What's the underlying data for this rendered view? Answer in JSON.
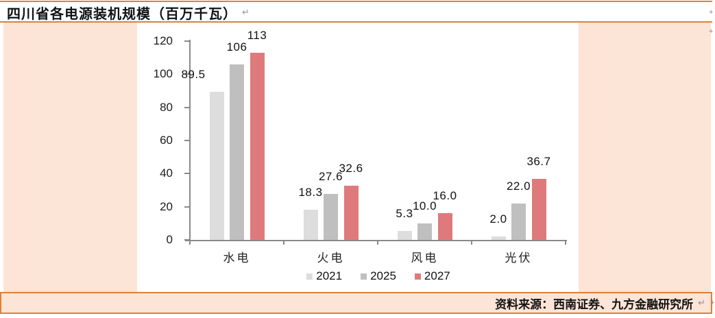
{
  "header": {
    "title": "四川省各电源装机规模（百万千瓦）",
    "paragraph_mark": "↵"
  },
  "footer": {
    "source": "资料来源：西南证券、九方金融研究所",
    "paragraph_mark": "↵",
    "anchor_mark": "+"
  },
  "colors": {
    "accent_orange": "#E08033",
    "band_fill": "#FCE4D6",
    "axis_gray": "#898989",
    "series_2021": "#DDDDDD",
    "series_2025": "#BFBFBF",
    "series_2027": "#DF7A7C"
  },
  "chart_data": {
    "type": "bar",
    "title": "四川省各电源装机规模（百万千瓦）",
    "categories": [
      "水电",
      "火电",
      "风电",
      "光伏"
    ],
    "series": [
      {
        "name": "2021",
        "values": [
          89.5,
          18.3,
          5.3,
          2.0
        ],
        "labels": [
          "89.5",
          "18.3",
          "5.3",
          "2.0"
        ],
        "color": "#DDDDDD"
      },
      {
        "name": "2025",
        "values": [
          106,
          27.6,
          10.0,
          22.0
        ],
        "labels": [
          "106",
          "27.6",
          "10.0",
          "22.0"
        ],
        "color": "#BFBFBF"
      },
      {
        "name": "2027",
        "values": [
          113,
          32.6,
          16.0,
          36.7
        ],
        "labels": [
          "113",
          "32.6",
          "16.0",
          "36.7"
        ],
        "color": "#DF7A7C"
      }
    ],
    "xlabel": "",
    "ylabel": "",
    "ylim": [
      0,
      120
    ],
    "yticks": [
      0,
      20,
      40,
      60,
      80,
      100,
      120
    ],
    "legend_position": "bottom",
    "grid": false
  }
}
